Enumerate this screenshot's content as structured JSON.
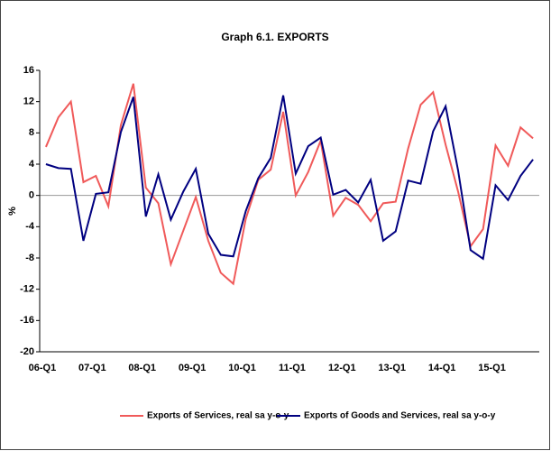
{
  "chart_data": {
    "type": "line",
    "title": "Graph 6.1. EXPORTS",
    "y_label": "%",
    "categories": [
      "06-Q1",
      null,
      null,
      null,
      "07-Q1",
      null,
      null,
      null,
      "08-Q1",
      null,
      null,
      null,
      "09-Q1",
      null,
      null,
      null,
      "10-Q1",
      null,
      null,
      null,
      "11-Q1",
      null,
      null,
      null,
      "12-Q1",
      null,
      null,
      null,
      "13-Q1",
      null,
      null,
      null,
      "14-Q1",
      null,
      null,
      null,
      "15-Q1",
      null,
      null,
      null
    ],
    "series": [
      {
        "name": "Exports of Services, real sa y-o-y",
        "color": "#f05a5a",
        "values": [
          6.2,
          10,
          12,
          1.7,
          2.5,
          -1.4,
          9,
          14.3,
          1,
          -1,
          -8.8,
          -4.5,
          -0.2,
          -5.8,
          -9.9,
          -11.3,
          -3,
          2,
          3.3,
          10.7,
          0,
          3,
          7,
          -2.6,
          -0.3,
          -1.2,
          -3.3,
          -1,
          -0.8,
          6,
          11.6,
          13.2,
          6.5,
          0.5,
          -6.5,
          -4.3,
          6.4,
          3.8,
          8.7,
          7.3
        ]
      },
      {
        "name": "Exports of Goods and Services, real sa y-o-y",
        "color": "#000080",
        "values": [
          4,
          3.5,
          3.4,
          -5.8,
          0.2,
          0.4,
          8.1,
          12.6,
          -2.7,
          2.7,
          -3.1,
          0.5,
          3.4,
          -4.9,
          -7.6,
          -7.8,
          -2,
          2.2,
          4.8,
          12.8,
          2.8,
          6.3,
          7.4,
          0.1,
          0.7,
          -0.9,
          2,
          -5.8,
          -4.6,
          1.9,
          1.5,
          8.2,
          11.4,
          3.2,
          -7,
          -8.1,
          1.3,
          -0.6,
          2.5,
          4.6
        ]
      }
    ],
    "ylim": [
      -20,
      16
    ],
    "yticks": [
      -20,
      -16,
      -12,
      -8,
      -4,
      0,
      4,
      8,
      12,
      16
    ],
    "legend": "bottom"
  }
}
